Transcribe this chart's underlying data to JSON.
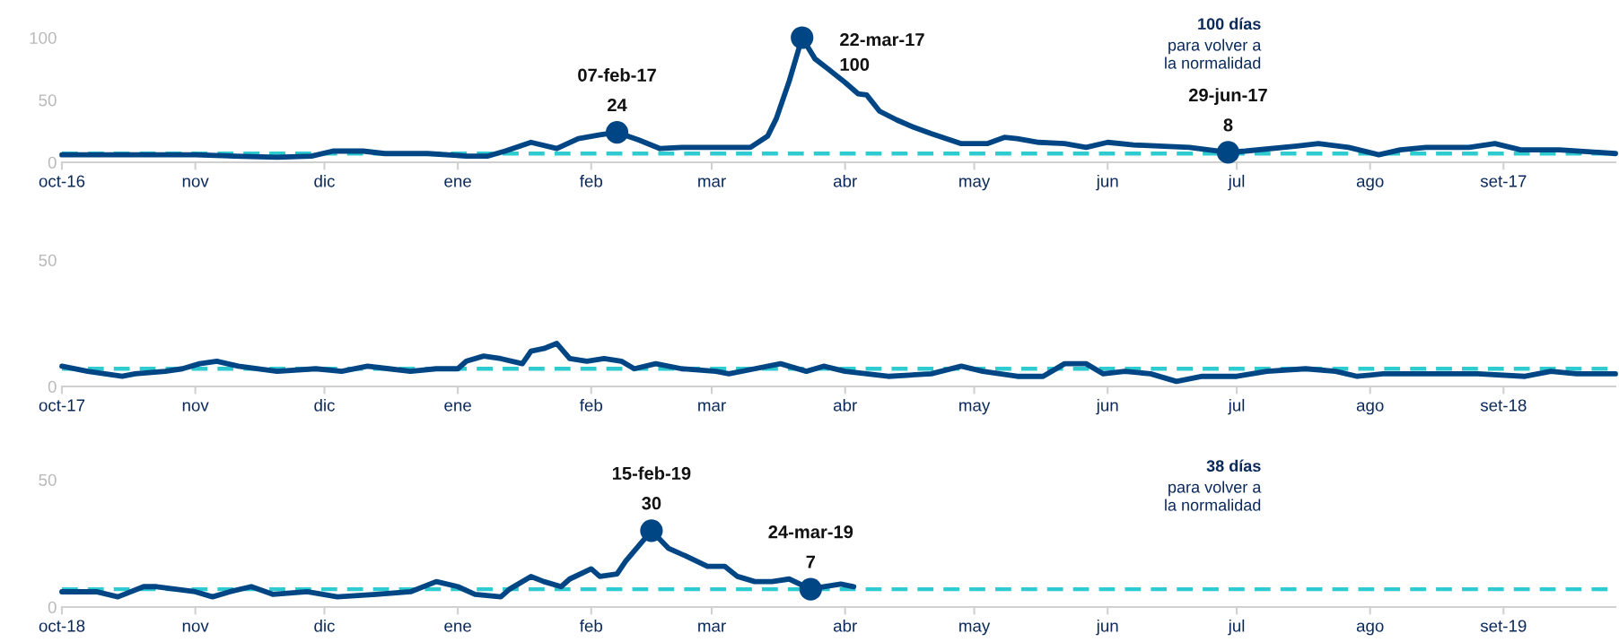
{
  "chart_data": [
    {
      "type": "line",
      "xlim": [
        "2016-10-01",
        "2017-09-27"
      ],
      "ylim": [
        0,
        100
      ],
      "yticks": [
        0,
        50,
        100
      ],
      "xticks": [
        {
          "value": "2016-10-01",
          "label": "oct-16"
        },
        {
          "value": "2016-11-01",
          "label": "nov"
        },
        {
          "value": "2016-12-01",
          "label": "dic"
        },
        {
          "value": "2017-01-01",
          "label": "ene"
        },
        {
          "value": "2017-02-01",
          "label": "feb"
        },
        {
          "value": "2017-03-01",
          "label": "mar"
        },
        {
          "value": "2017-04-01",
          "label": "abr"
        },
        {
          "value": "2017-05-01",
          "label": "may"
        },
        {
          "value": "2017-06-01",
          "label": "jun"
        },
        {
          "value": "2017-07-01",
          "label": "jul"
        },
        {
          "value": "2017-08-01",
          "label": "ago"
        },
        {
          "value": "2017-09-01",
          "label": "set-17"
        }
      ],
      "series": [
        {
          "color": "#004684",
          "x": [
            "2016-10-01",
            "2016-10-15",
            "2016-11-01",
            "2016-11-10",
            "2016-11-20",
            "2016-11-28",
            "2016-12-03",
            "2016-12-10",
            "2016-12-15",
            "2016-12-25",
            "2017-01-03",
            "2017-01-08",
            "2017-01-12",
            "2017-01-18",
            "2017-01-24",
            "2017-01-29",
            "2017-02-03",
            "2017-02-07",
            "2017-02-12",
            "2017-02-17",
            "2017-02-22",
            "2017-03-01",
            "2017-03-10",
            "2017-03-14",
            "2017-03-16",
            "2017-03-19",
            "2017-03-22",
            "2017-03-25",
            "2017-03-28",
            "2017-04-01",
            "2017-04-04",
            "2017-04-06",
            "2017-04-09",
            "2017-04-13",
            "2017-04-17",
            "2017-04-21",
            "2017-04-28",
            "2017-05-04",
            "2017-05-08",
            "2017-05-11",
            "2017-05-16",
            "2017-05-22",
            "2017-05-27",
            "2017-06-01",
            "2017-06-07",
            "2017-06-13",
            "2017-06-20",
            "2017-06-29",
            "2017-07-03",
            "2017-07-15",
            "2017-07-20",
            "2017-07-27",
            "2017-08-03",
            "2017-08-08",
            "2017-08-14",
            "2017-08-24",
            "2017-08-30",
            "2017-09-05",
            "2017-09-14",
            "2017-09-23",
            "2017-09-27"
          ],
          "values": [
            6,
            6,
            6,
            5,
            4,
            5,
            9,
            9,
            7,
            7,
            5,
            5,
            9,
            16,
            11,
            19,
            22,
            24,
            18,
            11,
            12,
            12,
            12,
            21,
            35,
            65,
            100,
            83,
            75,
            64,
            55,
            54,
            41,
            34,
            28,
            23,
            15,
            15,
            20,
            19,
            16,
            15,
            12,
            16,
            14,
            13,
            12,
            8,
            9,
            13,
            15,
            12,
            6,
            10,
            12,
            12,
            15,
            10,
            10,
            8,
            7
          ]
        },
        {
          "type": "scatter",
          "marker": "circle",
          "color": "#004684",
          "x": [
            "2017-02-07",
            "2017-03-22",
            "2017-06-29"
          ],
          "values": [
            24,
            100,
            8
          ]
        }
      ],
      "ref_lines": [
        {
          "axis": "y",
          "value": 7,
          "color": "#2ecbd0",
          "line_style": "dashed"
        }
      ],
      "annotations": [
        {
          "text": "07-feb-17",
          "x": "2017-02-07",
          "y": 24
        },
        {
          "text": "24",
          "x": "2017-02-07",
          "y": 24
        },
        {
          "text": "22-mar-17",
          "x": "2017-03-22",
          "y": 100
        },
        {
          "text": "100",
          "x": "2017-03-22",
          "y": 100
        },
        {
          "text": "29-jun-17",
          "x": "2017-06-29",
          "y": 8
        },
        {
          "text": "8",
          "x": "2017-06-29",
          "y": 8
        },
        "100 días",
        "para volver a\nla normalidad"
      ]
    },
    {
      "type": "line",
      "xlim": [
        "2017-10-01",
        "2018-09-27"
      ],
      "ylim": [
        0,
        50
      ],
      "yticks": [
        0,
        50
      ],
      "xticks": [
        {
          "value": "2017-10-01",
          "label": "oct-17"
        },
        {
          "value": "2017-11-01",
          "label": "nov"
        },
        {
          "value": "2017-12-01",
          "label": "dic"
        },
        {
          "value": "2018-01-01",
          "label": "ene"
        },
        {
          "value": "2018-02-01",
          "label": "feb"
        },
        {
          "value": "2018-03-01",
          "label": "mar"
        },
        {
          "value": "2018-04-01",
          "label": "abr"
        },
        {
          "value": "2018-05-01",
          "label": "may"
        },
        {
          "value": "2018-06-01",
          "label": "jun"
        },
        {
          "value": "2018-07-01",
          "label": "jul"
        },
        {
          "value": "2018-08-01",
          "label": "ago"
        },
        {
          "value": "2018-09-01",
          "label": "set-18"
        }
      ],
      "series": [
        {
          "color": "#004684",
          "x": [
            "2017-10-01",
            "2017-10-07",
            "2017-10-15",
            "2017-10-18",
            "2017-10-25",
            "2017-10-29",
            "2017-11-02",
            "2017-11-06",
            "2017-11-11",
            "2017-11-20",
            "2017-11-29",
            "2017-12-05",
            "2017-12-11",
            "2017-12-16",
            "2017-12-21",
            "2017-12-27",
            "2018-01-01",
            "2018-01-03",
            "2018-01-07",
            "2018-01-11",
            "2018-01-16",
            "2018-01-18",
            "2018-01-21",
            "2018-01-24",
            "2018-01-27",
            "2018-01-31",
            "2018-02-04",
            "2018-02-08",
            "2018-02-11",
            "2018-02-16",
            "2018-02-22",
            "2018-03-02",
            "2018-03-05",
            "2018-03-11",
            "2018-03-17",
            "2018-03-23",
            "2018-03-27",
            "2018-04-01",
            "2018-04-11",
            "2018-04-21",
            "2018-04-28",
            "2018-05-03",
            "2018-05-11",
            "2018-05-17",
            "2018-05-22",
            "2018-05-27",
            "2018-05-31",
            "2018-06-05",
            "2018-06-11",
            "2018-06-17",
            "2018-06-23",
            "2018-07-01",
            "2018-07-08",
            "2018-07-17",
            "2018-07-24",
            "2018-07-29",
            "2018-08-04",
            "2018-08-12",
            "2018-08-17",
            "2018-08-26",
            "2018-09-06",
            "2018-09-12",
            "2018-09-18",
            "2018-09-27"
          ],
          "values": [
            8,
            6,
            4,
            5,
            6,
            7,
            9,
            10,
            8,
            6,
            7,
            6,
            8,
            7,
            6,
            7,
            7,
            10,
            12,
            11,
            9,
            14,
            15,
            17,
            11,
            10,
            11,
            10,
            7,
            9,
            7,
            6,
            5,
            7,
            9,
            6,
            8,
            6,
            4,
            5,
            8,
            6,
            4,
            4,
            9,
            9,
            5,
            6,
            5,
            2,
            4,
            4,
            6,
            7,
            6,
            4,
            5,
            5,
            5,
            5,
            4,
            6,
            5,
            5
          ]
        }
      ],
      "ref_lines": [
        {
          "axis": "y",
          "value": 7,
          "color": "#2ecbd0",
          "line_style": "dashed"
        }
      ]
    },
    {
      "type": "line",
      "xlim": [
        "2018-10-01",
        "2019-09-27"
      ],
      "ylim": [
        0,
        50
      ],
      "yticks": [
        0,
        50
      ],
      "xticks": [
        {
          "value": "2018-10-01",
          "label": "oct-18"
        },
        {
          "value": "2018-11-01",
          "label": "nov"
        },
        {
          "value": "2018-12-01",
          "label": "dic"
        },
        {
          "value": "2019-01-01",
          "label": "ene"
        },
        {
          "value": "2019-02-01",
          "label": "feb"
        },
        {
          "value": "2019-03-01",
          "label": "mar"
        },
        {
          "value": "2019-04-01",
          "label": "abr"
        },
        {
          "value": "2019-05-01",
          "label": "may"
        },
        {
          "value": "2019-06-01",
          "label": "jun"
        },
        {
          "value": "2019-07-01",
          "label": "jul"
        },
        {
          "value": "2019-08-01",
          "label": "ago"
        },
        {
          "value": "2019-09-01",
          "label": "set-19"
        }
      ],
      "series": [
        {
          "color": "#004684",
          "x": [
            "2018-10-01",
            "2018-10-09",
            "2018-10-14",
            "2018-10-20",
            "2018-10-23",
            "2018-11-01",
            "2018-11-05",
            "2018-11-09",
            "2018-11-14",
            "2018-11-19",
            "2018-11-27",
            "2018-12-04",
            "2018-12-13",
            "2018-12-21",
            "2018-12-27",
            "2019-01-01",
            "2019-01-05",
            "2019-01-11",
            "2019-01-13",
            "2019-01-18",
            "2019-01-21",
            "2019-01-25",
            "2019-01-27",
            "2019-02-01",
            "2019-02-03",
            "2019-02-07",
            "2019-02-09",
            "2019-02-15",
            "2019-02-19",
            "2019-02-23",
            "2019-02-28",
            "2019-03-04",
            "2019-03-07",
            "2019-03-11",
            "2019-03-15",
            "2019-03-19",
            "2019-03-24",
            "2019-03-27",
            "2019-03-31",
            "2019-04-03"
          ],
          "values": [
            6,
            6,
            4,
            8,
            8,
            6,
            4,
            6,
            8,
            5,
            6,
            4,
            5,
            6,
            10,
            8,
            5,
            4,
            7,
            12,
            10,
            8,
            11,
            15,
            12,
            13,
            18,
            30,
            23,
            20,
            16,
            16,
            12,
            10,
            10,
            11,
            7,
            8,
            9,
            8
          ]
        },
        {
          "type": "scatter",
          "marker": "circle",
          "color": "#004684",
          "x": [
            "2019-02-15",
            "2019-03-24"
          ],
          "values": [
            30,
            7
          ]
        }
      ],
      "ref_lines": [
        {
          "axis": "y",
          "value": 7,
          "color": "#2ecbd0",
          "line_style": "dashed"
        }
      ],
      "annotations": [
        {
          "text": "15-feb-19",
          "x": "2019-02-15",
          "y": 30
        },
        {
          "text": "30",
          "x": "2019-02-15",
          "y": 30
        },
        {
          "text": "24-mar-19",
          "x": "2019-03-24",
          "y": 7
        },
        {
          "text": "7",
          "x": "2019-03-24",
          "y": 7
        },
        "38 días",
        "para volver a\nla normalidad"
      ]
    }
  ]
}
